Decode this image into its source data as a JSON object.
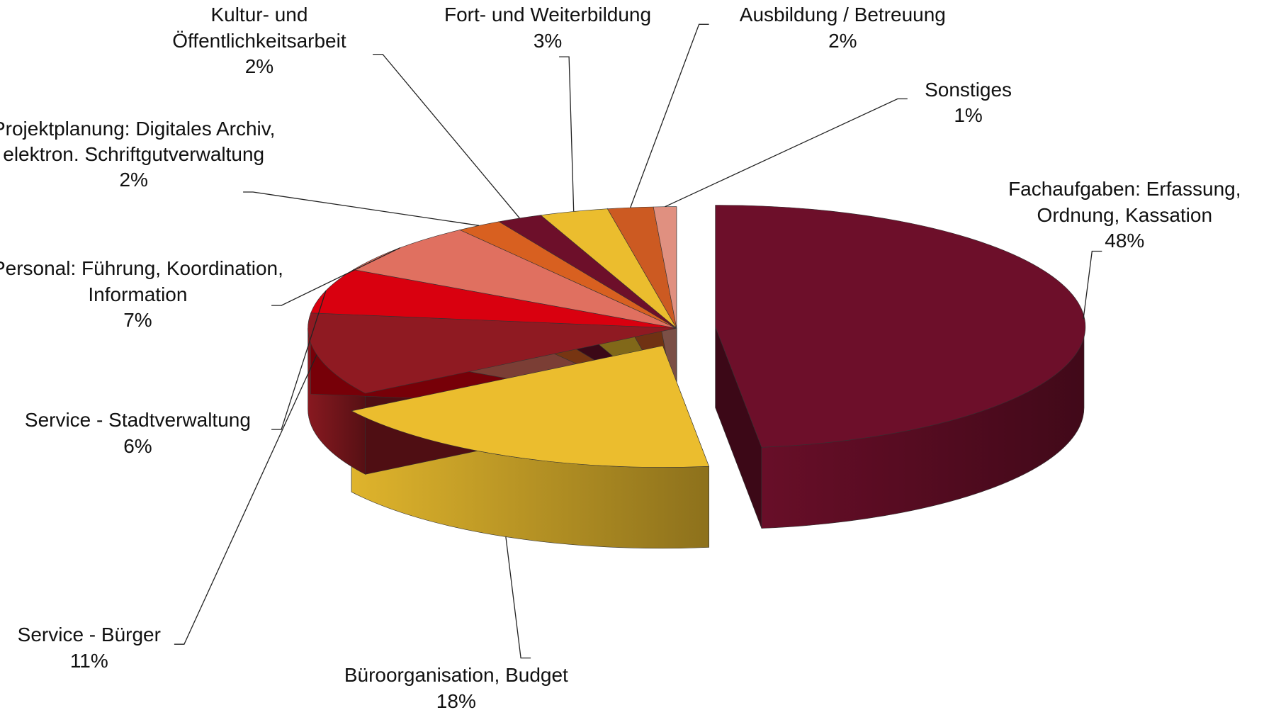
{
  "chart_data": {
    "type": "pie",
    "categories": [
      "Fachaufgaben: Erfassung, Ordnung, Kassation",
      "Büroorganisation, Budget",
      "Service - Bürger",
      "Service - Stadtverwaltung",
      "Personal: Führung, Koordination, Information",
      "Projektplanung: Digitales Archiv, elektron. Schriftgutverwaltung",
      "Kultur- und Öffentlichkeitsarbeit",
      "Fort- und Weiterbildung",
      "Ausbildung / Betreuung",
      "Sonstiges"
    ],
    "values": [
      48,
      18,
      11,
      6,
      7,
      2,
      2,
      3,
      2,
      1
    ],
    "value_labels": [
      "48%",
      "18%",
      "11%",
      "6%",
      "7%",
      "2%",
      "2%",
      "3%",
      "2%",
      "1%"
    ],
    "colors": [
      "#6d0f2a",
      "#ebbd2e",
      "#8f1a22",
      "#d9000f",
      "#e07060",
      "#d86020",
      "#6d0f2a",
      "#ebbd2e",
      "#cc5a22",
      "#e09080"
    ]
  }
}
